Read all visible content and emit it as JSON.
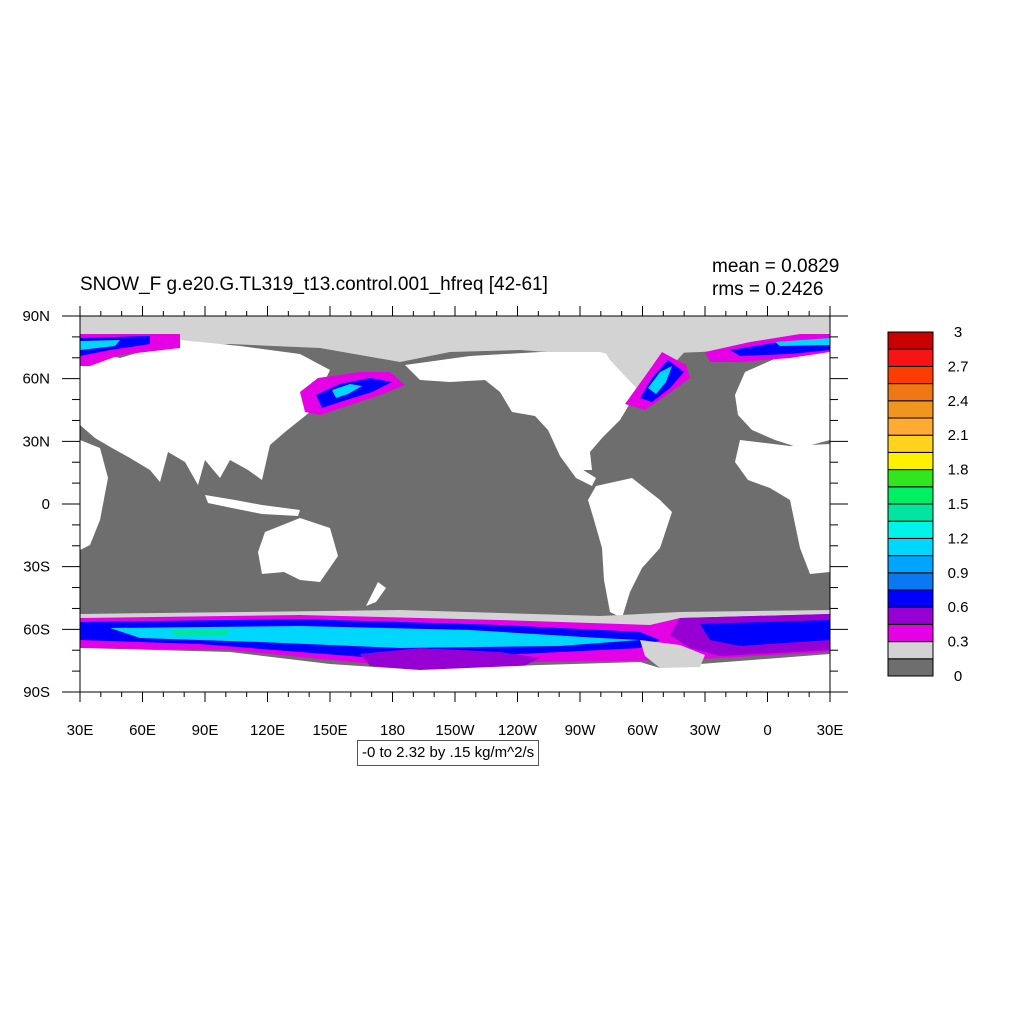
{
  "title": "SNOW_F g.e20.G.TL319_t13.control.001_hfreq [42-61]",
  "stats": {
    "mean": "mean = 0.0829",
    "rms": "rms = 0.2426"
  },
  "contour_info": "-0 to 2.32 by .15 kg/m^2/s",
  "axes": {
    "x_ticks": [
      "30E",
      "60E",
      "90E",
      "120E",
      "150E",
      "180",
      "150W",
      "120W",
      "90W",
      "60W",
      "30W",
      "0",
      "30E"
    ],
    "y_ticks": [
      "90N",
      "60N",
      "30N",
      "0",
      "30S",
      "60S",
      "90S"
    ]
  },
  "colorbar": {
    "colors": [
      "#6e6e6e",
      "#d3d3d3",
      "#e600e6",
      "#9600d2",
      "#0000ff",
      "#0a78f0",
      "#00a5ff",
      "#00d7ff",
      "#00f5e6",
      "#00e6a0",
      "#00f064",
      "#32e61e",
      "#fff000",
      "#ffd21e",
      "#ffaa32",
      "#f0961e",
      "#f07814",
      "#ff3c00",
      "#f51414",
      "#c80000"
    ],
    "labels": [
      "0",
      "0.3",
      "0.6",
      "0.9",
      "1.2",
      "1.5",
      "1.8",
      "2.1",
      "2.4",
      "2.7",
      "3"
    ]
  },
  "map_colors": {
    "ocean": "#6e6e6e",
    "land": "#ffffff",
    "light": "#d3d3d3",
    "magenta": "#e600e6",
    "purple": "#9600d2",
    "blue": "#0000ff",
    "mid_blue": "#0a78f0",
    "cyan": "#00d7ff",
    "green": "#00e6a0"
  }
}
